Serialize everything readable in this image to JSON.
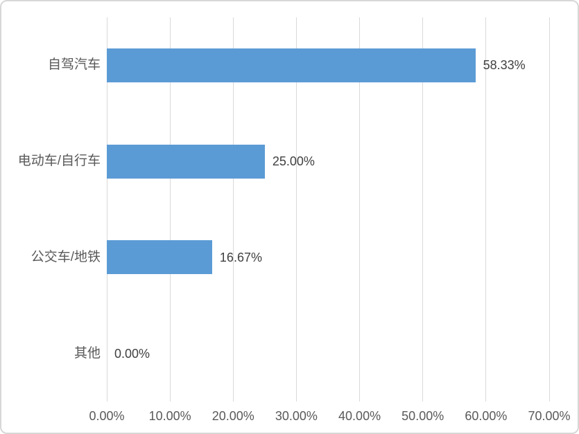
{
  "chart_data": {
    "type": "bar",
    "orientation": "horizontal",
    "title": "",
    "categories": [
      "自驾汽车",
      "电动车/自行车",
      "公交车/地铁",
      "其他"
    ],
    "values": [
      58.33,
      25.0,
      16.67,
      0.0
    ],
    "data_labels": [
      "58.33%",
      "25.00%",
      "16.67%",
      "0.00%"
    ],
    "x_ticks": [
      "0.00%",
      "10.00%",
      "20.00%",
      "30.00%",
      "40.00%",
      "50.00%",
      "60.00%",
      "70.00%"
    ],
    "x_tick_values": [
      0,
      10,
      20,
      30,
      40,
      50,
      60,
      70
    ],
    "xlim": [
      0,
      70
    ],
    "grid": true,
    "legend": false,
    "colors": {
      "bar": "#5B9BD5",
      "gridline": "#D9D9D9",
      "tick_label": "#595959",
      "category_label": "#595959",
      "data_label": "#404040",
      "frame_border": "#D7D7D7",
      "background": "#FFFFFF"
    }
  }
}
